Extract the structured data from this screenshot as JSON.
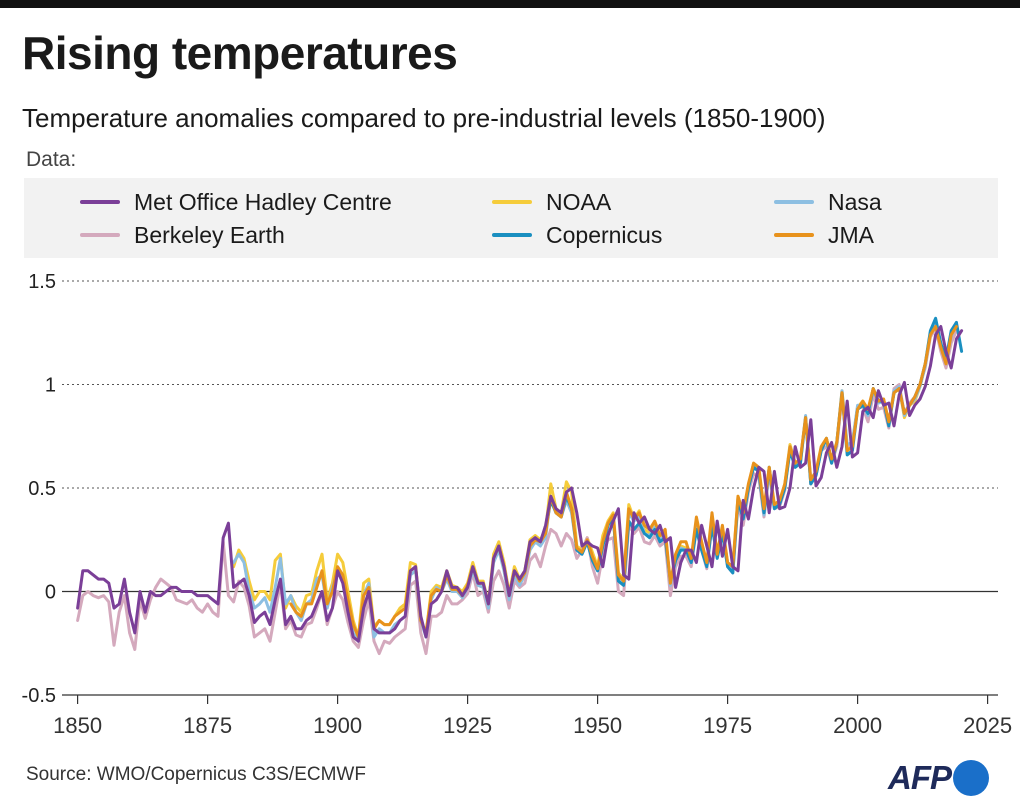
{
  "header": {
    "title": "Rising temperatures",
    "subtitle": "Temperature anomalies compared to pre-industrial levels (1850-1900)"
  },
  "legend": {
    "title": "Data:"
  },
  "footer": {
    "source": "Source: WMO/Copernicus C3S/ECMWF",
    "logo_text": "AFP"
  },
  "chart_data": {
    "type": "line",
    "title": "Rising temperatures",
    "subtitle": "Temperature anomalies compared to pre-industrial levels (1850-1900)",
    "xlim": [
      1847,
      2027
    ],
    "ylim": [
      -0.5,
      1.5
    ],
    "x_ticks": [
      1850,
      1875,
      1900,
      1925,
      1950,
      1975,
      2000,
      2025
    ],
    "x_tick_labels": [
      "1850",
      "1875",
      "1900",
      "1925",
      "1950",
      "1975",
      "2000",
      "2025"
    ],
    "y_ticks": [
      -0.5,
      0,
      0.5,
      1,
      1.5
    ],
    "y_tick_labels": [
      "-0.5",
      "0",
      "0.5",
      "1",
      "1.5"
    ],
    "grid": "horizontal dotted",
    "legend_position": "top",
    "series": [
      {
        "name": "NOAA",
        "color": "#f5cc3b",
        "start_year": 1880,
        "values": [
          0.12,
          0.2,
          0.16,
          0.05,
          -0.04,
          0.0,
          0.0,
          -0.04,
          0.15,
          0.18,
          -0.08,
          -0.02,
          -0.07,
          -0.1,
          -0.02,
          -0.01,
          0.1,
          0.18,
          -0.04,
          0.04,
          0.18,
          0.14,
          0.0,
          -0.14,
          -0.22,
          0.04,
          0.06,
          -0.17,
          -0.14,
          -0.16,
          -0.16,
          -0.12,
          -0.08,
          -0.06,
          0.14,
          0.13,
          -0.15,
          -0.2,
          0.0,
          0.03,
          0.02,
          0.1,
          0.03,
          0.02,
          0.0,
          0.04,
          0.14,
          0.05,
          0.05,
          -0.06,
          0.18,
          0.24,
          0.14,
          -0.01,
          0.12,
          0.06,
          0.1,
          0.25,
          0.27,
          0.25,
          0.3,
          0.52,
          0.4,
          0.38,
          0.53,
          0.48,
          0.22,
          0.2,
          0.26,
          0.19,
          0.12,
          0.27,
          0.34,
          0.38,
          0.09,
          0.06,
          0.42,
          0.35,
          0.39,
          0.3,
          0.28,
          0.32,
          0.26,
          0.28,
          0.04,
          0.16,
          0.22,
          0.21,
          0.15,
          0.33,
          0.22,
          0.14,
          0.35,
          0.18,
          0.3,
          0.14,
          0.11,
          0.46,
          0.36,
          0.51,
          0.62,
          0.59,
          0.38,
          0.6,
          0.41,
          0.43,
          0.52,
          0.71,
          0.62,
          0.64,
          0.84,
          0.52,
          0.57,
          0.69,
          0.74,
          0.63,
          0.72,
          0.97,
          0.7,
          0.71,
          0.89,
          0.92,
          0.86,
          0.98,
          0.92,
          0.93,
          0.82,
          0.96,
          0.99,
          0.84,
          0.9,
          0.92,
          0.99,
          1.09,
          1.25,
          1.29,
          1.19,
          1.1,
          1.24,
          1.29
        ]
      },
      {
        "name": "Berkeley Earth",
        "color": "#d4a9bd",
        "start_year": 1850,
        "values": [
          -0.14,
          -0.02,
          0.0,
          -0.02,
          -0.03,
          -0.02,
          -0.05,
          -0.26,
          -0.1,
          -0.02,
          -0.2,
          -0.28,
          -0.04,
          -0.13,
          -0.04,
          0.02,
          0.06,
          0.04,
          0.02,
          -0.04,
          -0.05,
          -0.06,
          -0.04,
          -0.08,
          -0.1,
          -0.06,
          -0.1,
          -0.12,
          0.24,
          -0.02,
          -0.05,
          0.05,
          0.02,
          -0.07,
          -0.22,
          -0.2,
          -0.18,
          -0.24,
          -0.1,
          0.04,
          -0.18,
          -0.14,
          -0.21,
          -0.22,
          -0.16,
          -0.15,
          -0.08,
          0.0,
          -0.16,
          -0.08,
          0.0,
          -0.04,
          -0.15,
          -0.24,
          -0.27,
          -0.14,
          -0.04,
          -0.24,
          -0.3,
          -0.24,
          -0.25,
          -0.22,
          -0.2,
          -0.18,
          0.03,
          0.05,
          -0.2,
          -0.3,
          -0.12,
          -0.12,
          -0.1,
          -0.02,
          -0.06,
          -0.06,
          -0.04,
          -0.01,
          0.09,
          -0.02,
          0.0,
          -0.1,
          0.05,
          0.1,
          0.03,
          -0.08,
          0.05,
          0.02,
          0.04,
          0.15,
          0.18,
          0.12,
          0.22,
          0.3,
          0.28,
          0.22,
          0.28,
          0.25,
          0.16,
          0.2,
          0.26,
          0.12,
          0.04,
          0.18,
          0.25,
          0.26,
          0.0,
          -0.02,
          0.32,
          0.28,
          0.31,
          0.24,
          0.23,
          0.27,
          0.22,
          0.24,
          -0.02,
          0.12,
          0.17,
          0.17,
          0.12,
          0.3,
          0.2,
          0.11,
          0.32,
          0.17,
          0.29,
          0.12,
          0.09,
          0.42,
          0.32,
          0.48,
          0.57,
          0.55,
          0.36,
          0.57,
          0.4,
          0.41,
          0.49,
          0.69,
          0.6,
          0.62,
          0.84,
          0.52,
          0.56,
          0.68,
          0.7,
          0.62,
          0.7,
          0.94,
          0.7,
          0.72,
          0.89,
          0.89,
          0.82,
          0.95,
          0.88,
          0.89,
          0.79,
          0.98,
          1.0,
          0.86,
          0.91,
          0.94,
          1.0,
          1.08,
          1.23,
          1.27,
          1.16,
          1.08,
          1.2,
          1.26
        ]
      },
      {
        "name": "Nasa",
        "color": "#8dbfe2",
        "start_year": 1880,
        "values": [
          0.14,
          0.18,
          0.14,
          0.0,
          -0.08,
          -0.06,
          -0.03,
          -0.1,
          0.02,
          0.16,
          -0.06,
          -0.02,
          -0.1,
          -0.14,
          -0.06,
          -0.04,
          0.06,
          0.08,
          -0.08,
          0.02,
          0.1,
          0.06,
          -0.08,
          -0.2,
          -0.24,
          -0.02,
          0.04,
          -0.22,
          -0.18,
          -0.2,
          -0.2,
          -0.16,
          -0.14,
          -0.12,
          0.08,
          0.1,
          -0.14,
          -0.22,
          -0.04,
          0.02,
          0.0,
          0.06,
          0.0,
          0.0,
          -0.03,
          0.02,
          0.1,
          0.03,
          0.02,
          -0.08,
          0.14,
          0.2,
          0.1,
          -0.04,
          0.08,
          0.03,
          0.08,
          0.2,
          0.24,
          0.22,
          0.26,
          0.46,
          0.38,
          0.36,
          0.44,
          0.38,
          0.2,
          0.18,
          0.24,
          0.15,
          0.1,
          0.22,
          0.32,
          0.36,
          0.06,
          0.04,
          0.38,
          0.34,
          0.37,
          0.28,
          0.27,
          0.31,
          0.25,
          0.27,
          0.03,
          0.15,
          0.21,
          0.2,
          0.14,
          0.31,
          0.22,
          0.13,
          0.34,
          0.17,
          0.3,
          0.13,
          0.1,
          0.45,
          0.35,
          0.5,
          0.6,
          0.58,
          0.37,
          0.59,
          0.41,
          0.42,
          0.51,
          0.7,
          0.62,
          0.63,
          0.85,
          0.53,
          0.57,
          0.69,
          0.73,
          0.63,
          0.72,
          0.97,
          0.71,
          0.72,
          0.9,
          0.9,
          0.85,
          0.98,
          0.91,
          0.92,
          0.81,
          0.97,
          0.99,
          0.85,
          0.9,
          0.93,
          0.99,
          1.09,
          1.25,
          1.3,
          1.18,
          1.1,
          1.23,
          1.3
        ]
      },
      {
        "name": "Copernicus",
        "color": "#1a8fc0",
        "start_year": 1940,
        "values": [
          0.3,
          0.44,
          0.38,
          0.36,
          0.46,
          0.4,
          0.2,
          0.18,
          0.24,
          0.15,
          0.1,
          0.22,
          0.32,
          0.36,
          0.05,
          0.03,
          0.34,
          0.3,
          0.33,
          0.28,
          0.26,
          0.3,
          0.24,
          0.26,
          0.05,
          0.15,
          0.2,
          0.2,
          0.14,
          0.3,
          0.2,
          0.12,
          0.32,
          0.16,
          0.28,
          0.12,
          0.09,
          0.44,
          0.35,
          0.5,
          0.6,
          0.58,
          0.38,
          0.6,
          0.4,
          0.42,
          0.5,
          0.68,
          0.6,
          0.62,
          0.84,
          0.52,
          0.56,
          0.68,
          0.74,
          0.62,
          0.72,
          0.96,
          0.66,
          0.68,
          0.88,
          0.9,
          0.86,
          0.98,
          0.92,
          0.92,
          0.8,
          0.96,
          0.98,
          0.86,
          0.9,
          0.94,
          1.0,
          1.1,
          1.26,
          1.32,
          1.2,
          1.12,
          1.26,
          1.3,
          1.16
        ]
      },
      {
        "name": "JMA",
        "color": "#e8921c",
        "start_year": 1891,
        "values": [
          -0.06,
          -0.1,
          -0.12,
          -0.06,
          -0.06,
          0.02,
          0.1,
          -0.06,
          0.0,
          0.12,
          0.08,
          -0.04,
          -0.16,
          -0.22,
          -0.02,
          0.02,
          -0.18,
          -0.14,
          -0.16,
          -0.16,
          -0.12,
          -0.1,
          -0.08,
          0.1,
          0.12,
          -0.14,
          -0.2,
          -0.02,
          0.01,
          0.0,
          0.08,
          0.01,
          0.01,
          -0.02,
          0.03,
          0.12,
          0.04,
          0.04,
          -0.06,
          0.16,
          0.22,
          0.12,
          -0.02,
          0.1,
          0.05,
          0.09,
          0.22,
          0.25,
          0.24,
          0.28,
          0.46,
          0.38,
          0.36,
          0.48,
          0.4,
          0.21,
          0.19,
          0.25,
          0.17,
          0.11,
          0.24,
          0.33,
          0.37,
          0.08,
          0.05,
          0.4,
          0.35,
          0.38,
          0.32,
          0.3,
          0.34,
          0.27,
          0.3,
          0.04,
          0.18,
          0.24,
          0.24,
          0.16,
          0.36,
          0.24,
          0.14,
          0.38,
          0.18,
          0.32,
          0.14,
          0.12,
          0.46,
          0.38,
          0.52,
          0.62,
          0.6,
          0.4,
          0.6,
          0.42,
          0.44,
          0.52,
          0.7,
          0.62,
          0.64,
          0.84,
          0.54,
          0.58,
          0.7,
          0.74,
          0.64,
          0.72,
          0.96,
          0.68,
          0.7,
          0.88,
          0.92,
          0.88,
          0.98,
          0.92,
          0.93,
          0.82,
          0.96,
          0.98,
          0.86,
          0.9,
          0.94,
          1.0,
          1.1,
          1.24,
          1.28,
          1.18,
          1.1,
          1.24,
          1.28
        ]
      },
      {
        "name": "Met Office Hadley Centre",
        "color": "#7b3f98",
        "start_year": 1850,
        "values": [
          -0.08,
          0.1,
          0.1,
          0.08,
          0.06,
          0.06,
          0.04,
          -0.08,
          -0.06,
          0.06,
          -0.1,
          -0.2,
          0.0,
          -0.1,
          0.0,
          -0.02,
          -0.02,
          0.0,
          0.02,
          0.02,
          0.0,
          0.0,
          0.0,
          -0.02,
          -0.02,
          -0.02,
          -0.04,
          -0.06,
          0.26,
          0.33,
          0.02,
          0.04,
          0.06,
          -0.02,
          -0.15,
          -0.12,
          -0.1,
          -0.16,
          -0.04,
          0.06,
          -0.16,
          -0.12,
          -0.18,
          -0.18,
          -0.14,
          -0.12,
          -0.06,
          0.0,
          -0.14,
          -0.08,
          0.1,
          0.04,
          -0.1,
          -0.22,
          -0.24,
          -0.08,
          0.0,
          -0.18,
          -0.2,
          -0.2,
          -0.2,
          -0.18,
          -0.14,
          -0.12,
          0.1,
          0.12,
          -0.12,
          -0.22,
          -0.06,
          -0.04,
          0.0,
          0.1,
          0.02,
          0.02,
          -0.02,
          0.02,
          0.12,
          0.04,
          0.04,
          -0.06,
          0.16,
          0.22,
          0.12,
          -0.02,
          0.1,
          0.06,
          0.1,
          0.24,
          0.26,
          0.24,
          0.32,
          0.46,
          0.4,
          0.38,
          0.48,
          0.5,
          0.38,
          0.22,
          0.24,
          0.22,
          0.21,
          0.12,
          0.27,
          0.34,
          0.4,
          0.08,
          0.06,
          0.38,
          0.33,
          0.36,
          0.3,
          0.28,
          0.32,
          0.24,
          0.26,
          0.02,
          0.14,
          0.2,
          0.2,
          0.14,
          0.32,
          0.22,
          0.12,
          0.34,
          0.17,
          0.3,
          0.12,
          0.1,
          0.44,
          0.35,
          0.5,
          0.6,
          0.58,
          0.38,
          0.58,
          0.4,
          0.41,
          0.5,
          0.7,
          0.6,
          0.62,
          0.83,
          0.51,
          0.55,
          0.67,
          0.72,
          0.6,
          0.7,
          0.92,
          0.65,
          0.67,
          0.87,
          0.89,
          0.84,
          0.97,
          0.9,
          0.91,
          0.8,
          0.95,
          1.01,
          0.85,
          0.9,
          0.93,
          0.99,
          1.09,
          1.24,
          1.28,
          1.16,
          1.08,
          1.22,
          1.26
        ]
      }
    ]
  }
}
